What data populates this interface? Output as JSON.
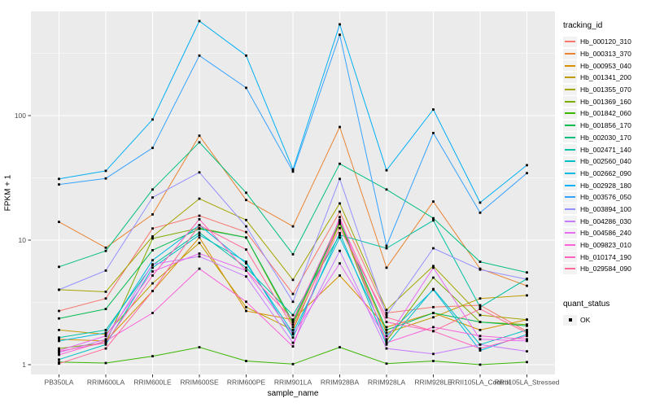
{
  "chart_data": {
    "type": "line",
    "title": "",
    "xlabel": "sample_name",
    "ylabel": "FPKM + 1",
    "y_scale": "log10",
    "y_ticks": [
      1,
      10,
      100
    ],
    "y_minor_ticks": [
      3.162,
      31.62,
      316.2
    ],
    "ylim": [
      0.84,
      690
    ],
    "grid": "on",
    "legend_position": "right",
    "point_marker": "black-square",
    "categories": [
      "PB350LA",
      "RRIM600LA",
      "RRIM600LE",
      "RRIM600SE",
      "RRIM600PE",
      "RRIM901LA",
      "RRIM928BA",
      "RRIM928LA",
      "RRIM928LE",
      "RRII105LA_Control",
      "RRII105LA_Stressed"
    ],
    "series": [
      {
        "name": "Hb_000120_310",
        "color": "#F8766D",
        "values": [
          2.7,
          3.4,
          12.4,
          15.7,
          11.6,
          3.7,
          16.9,
          2.6,
          2.9,
          3.0,
          1.85
        ]
      },
      {
        "name": "Hb_000313_370",
        "color": "#EA8331",
        "values": [
          14.0,
          8.7,
          16.1,
          69,
          21,
          12.9,
          81,
          6.0,
          20.4,
          5.9,
          4.3
        ]
      },
      {
        "name": "Hb_000953_040",
        "color": "#D89000",
        "values": [
          1.6,
          1.55,
          3.9,
          10.5,
          2.7,
          2.3,
          5.2,
          2.0,
          2.6,
          1.9,
          2.3
        ]
      },
      {
        "name": "Hb_001341_200",
        "color": "#C09B00",
        "values": [
          1.9,
          1.75,
          4.5,
          9.5,
          2.9,
          1.9,
          13.5,
          1.8,
          2.4,
          3.4,
          3.6
        ]
      },
      {
        "name": "Hb_001355_070",
        "color": "#A3A500",
        "values": [
          4.0,
          3.85,
          10.7,
          21.5,
          14.5,
          4.8,
          19.7,
          2.75,
          6.2,
          2.5,
          2.3
        ]
      },
      {
        "name": "Hb_001369_160",
        "color": "#7CAE00",
        "values": [
          1.35,
          1.5,
          10.3,
          12.5,
          10.5,
          2.1,
          13.9,
          1.55,
          5.0,
          2.2,
          2.1
        ]
      },
      {
        "name": "Hb_001842_060",
        "color": "#39B600",
        "values": [
          1.05,
          1.03,
          1.17,
          1.38,
          1.07,
          1.01,
          1.38,
          1.02,
          1.07,
          1.0,
          1.05
        ]
      },
      {
        "name": "Hb_001856_170",
        "color": "#00BB4E",
        "values": [
          2.35,
          2.8,
          8.3,
          12.3,
          10.5,
          2.2,
          14.0,
          1.9,
          2.6,
          2.2,
          2.05
        ]
      },
      {
        "name": "Hb_002030_170",
        "color": "#00BF7D",
        "values": [
          6.1,
          8.2,
          25.5,
          61,
          24,
          7.7,
          41,
          25.5,
          15.0,
          6.7,
          5.5
        ]
      },
      {
        "name": "Hb_002471_140",
        "color": "#00C1A3",
        "values": [
          1.65,
          1.9,
          6.3,
          11.5,
          6.0,
          2.5,
          11.0,
          8.6,
          14.4,
          2.9,
          4.9
        ]
      },
      {
        "name": "Hb_002560_040",
        "color": "#00BFC4",
        "values": [
          1.1,
          1.45,
          6.0,
          11.0,
          6.7,
          1.65,
          11.4,
          1.45,
          4.05,
          1.45,
          1.9
        ]
      },
      {
        "name": "Hb_002662_090",
        "color": "#00BAE0",
        "values": [
          1.55,
          1.8,
          6.9,
          13.2,
          6.5,
          1.8,
          10.5,
          1.7,
          4.0,
          1.3,
          1.75
        ]
      },
      {
        "name": "Hb_002928_180",
        "color": "#00B0F6",
        "values": [
          31,
          36,
          93,
          574,
          303,
          37,
          540,
          36.4,
          112,
          20,
          40
        ]
      },
      {
        "name": "Hb_003576_050",
        "color": "#35A2FF",
        "values": [
          28,
          31.3,
          55,
          303,
          167,
          35.5,
          446,
          9.0,
          72.5,
          16.6,
          34.5
        ]
      },
      {
        "name": "Hb_003894_100",
        "color": "#9590FF",
        "values": [
          4.0,
          5.7,
          22,
          35,
          12.9,
          3.2,
          31,
          2.5,
          8.6,
          5.8,
          4.85
        ]
      },
      {
        "name": "Hb_004286_030",
        "color": "#C77CFF",
        "values": [
          1.25,
          1.6,
          6.4,
          7.4,
          5.1,
          1.5,
          8.2,
          1.35,
          1.22,
          1.45,
          1.28
        ]
      },
      {
        "name": "Hb_004586_240",
        "color": "#E76BF3",
        "values": [
          1.3,
          1.7,
          5.6,
          7.8,
          5.7,
          1.75,
          6.5,
          1.6,
          6.0,
          1.6,
          1.55
        ]
      },
      {
        "name": "Hb_009823_010",
        "color": "#FA62DB",
        "values": [
          1.2,
          1.55,
          2.6,
          5.9,
          3.2,
          1.4,
          15.3,
          1.5,
          2.0,
          1.7,
          1.6
        ]
      },
      {
        "name": "Hb_010174_190",
        "color": "#FF62BC",
        "values": [
          1.28,
          1.5,
          5.2,
          14.7,
          5.7,
          2.3,
          14.5,
          2.2,
          1.86,
          1.35,
          1.7
        ]
      },
      {
        "name": "Hb_029584_090",
        "color": "#FF6A98",
        "values": [
          1.02,
          1.35,
          3.9,
          13.2,
          8.4,
          2.0,
          12.5,
          2.4,
          1.86,
          2.8,
          1.8
        ]
      }
    ]
  },
  "legend": {
    "tracking_title": "tracking_id",
    "quant_title": "quant_status",
    "quant_items": [
      {
        "label": "OK"
      }
    ]
  },
  "colors": {
    "panel_background": "#EBEBEB",
    "grid": "#FFFFFF",
    "axis_text": "#4D4D4D",
    "title_text": "#000000",
    "legend_key_background": "#F2F2F2",
    "point": "#000000",
    "tick": "#333333"
  }
}
